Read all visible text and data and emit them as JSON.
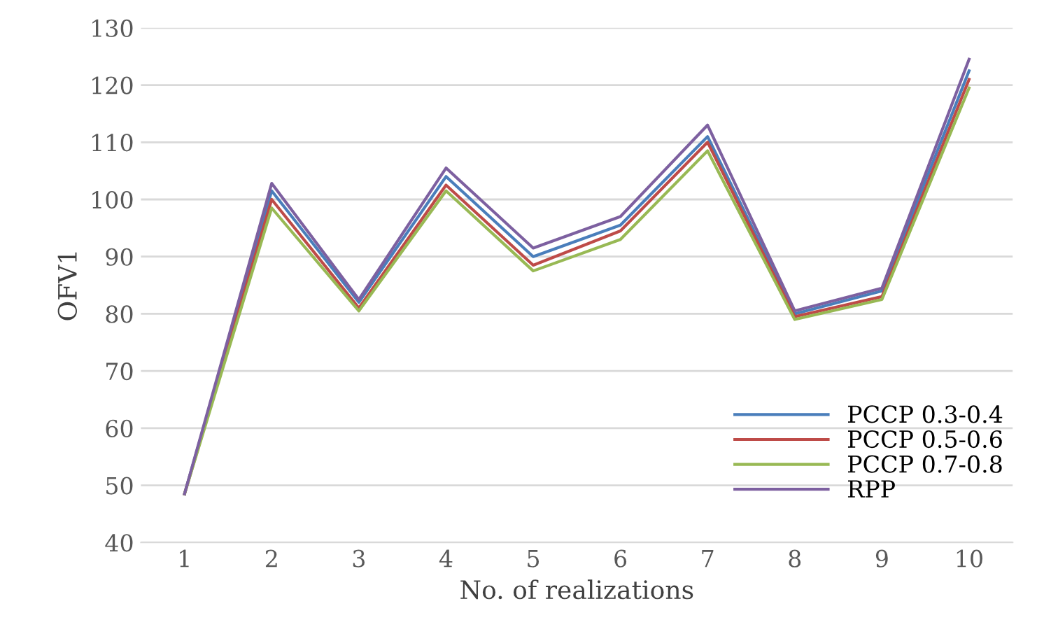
{
  "chart_data": {
    "type": "line",
    "xlabel": "No. of realizations",
    "ylabel": "OFV1",
    "categories": [
      "1",
      "2",
      "3",
      "4",
      "5",
      "6",
      "7",
      "8",
      "9",
      "10"
    ],
    "series": [
      {
        "name": "PCCP 0.3-0.4",
        "color": "#4a7ebb",
        "values": [
          48.5,
          101.5,
          82,
          104,
          90,
          95.5,
          111,
          80,
          84,
          122.5
        ]
      },
      {
        "name": "PCCP 0.5-0.6",
        "color": "#be4b48",
        "values": [
          48.5,
          100,
          81,
          102.5,
          88.5,
          94.5,
          110,
          79.5,
          83,
          121
        ]
      },
      {
        "name": "PCCP 0.7-0.8",
        "color": "#98b954",
        "values": [
          48.5,
          98.5,
          80.5,
          101.5,
          87.5,
          93,
          108.5,
          79,
          82.5,
          119.5
        ]
      },
      {
        "name": "RPP",
        "color": "#7d60a0",
        "values": [
          48.5,
          102.8,
          82.5,
          105.5,
          91.5,
          97,
          113,
          80.5,
          84.5,
          124.5
        ]
      }
    ],
    "ylim": [
      40,
      130
    ],
    "yticks": [
      40,
      50,
      60,
      70,
      80,
      90,
      100,
      110,
      120,
      130
    ],
    "grid": "y",
    "legend": "bottom right",
    "marker": "none",
    "line_style": "solid"
  }
}
